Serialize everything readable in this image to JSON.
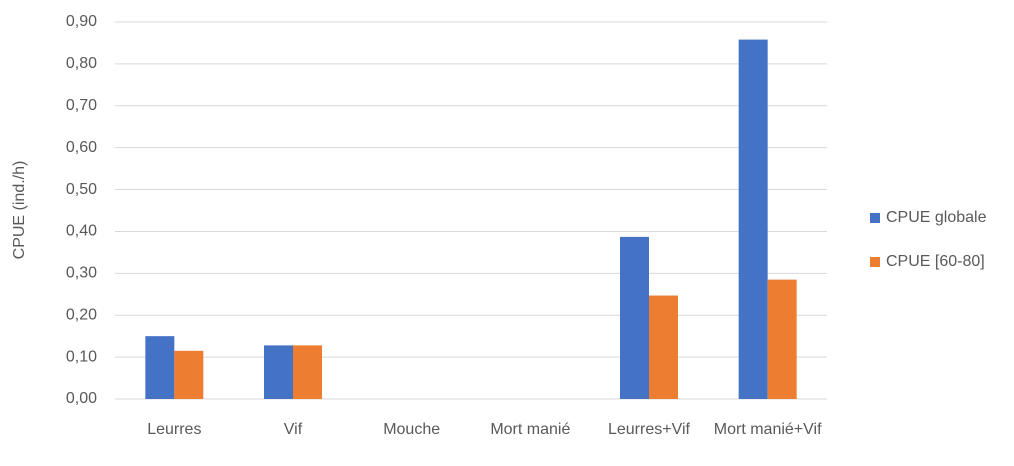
{
  "chart_data": {
    "type": "bar",
    "y_label": "CPUE (ind./h)",
    "categories": [
      "Leurres",
      "Vif",
      "Mouche",
      "Mort manié",
      "Leurres+Vif",
      "Mort manié+Vif"
    ],
    "series": [
      {
        "name": "CPUE globale",
        "color": "#4472c4",
        "values": [
          0.15,
          0.128,
          0,
          0,
          0.387,
          0.858
        ]
      },
      {
        "name": "CPUE [60-80]",
        "color": "#ed7d31",
        "values": [
          0.115,
          0.128,
          0,
          0,
          0.247,
          0.285
        ]
      }
    ],
    "ylim": [
      0,
      0.9
    ],
    "yticks": [
      {
        "value": 0,
        "label": "0,00"
      },
      {
        "value": 0.1,
        "label": "0,10"
      },
      {
        "value": 0.2,
        "label": "0,20"
      },
      {
        "value": 0.3,
        "label": "0,30"
      },
      {
        "value": 0.4,
        "label": "0,40"
      },
      {
        "value": 0.5,
        "label": "0,50"
      },
      {
        "value": 0.6,
        "label": "0,60"
      },
      {
        "value": 0.7,
        "label": "0,70"
      },
      {
        "value": 0.8,
        "label": "0,80"
      },
      {
        "value": 0.9,
        "label": "0,90"
      }
    ],
    "grid": true,
    "legend": "right"
  }
}
